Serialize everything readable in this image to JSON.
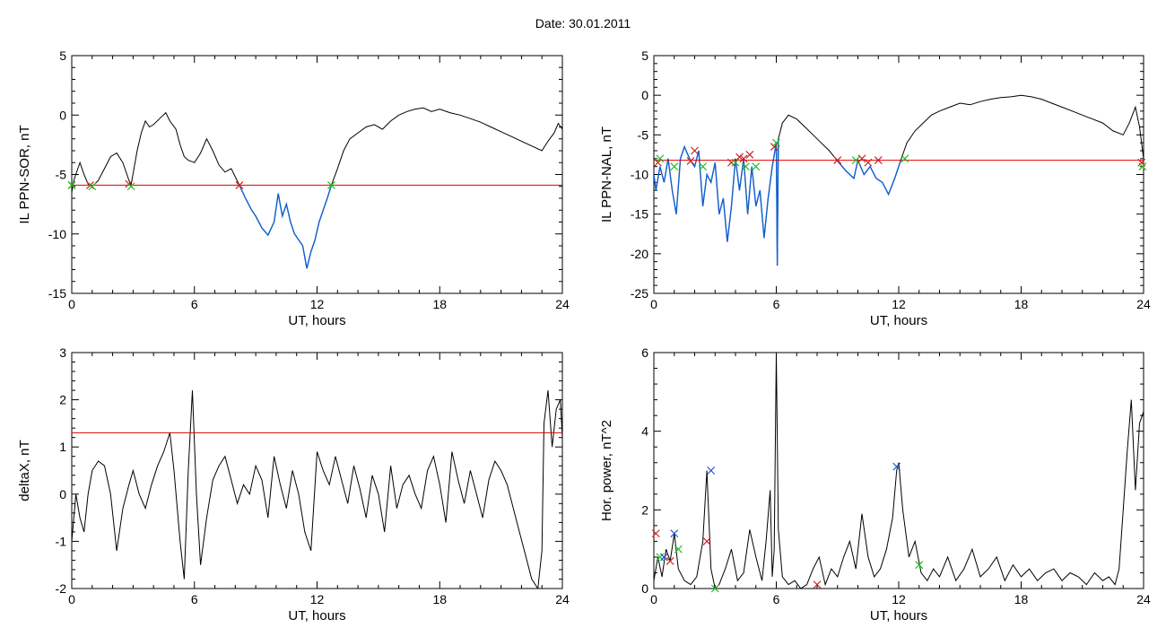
{
  "header": {
    "date_text": "Date:  30.01.2011"
  },
  "colors": {
    "trace": "#000000",
    "highlight": "#1060d0",
    "threshold": "#e00000",
    "marker_red": "#d02020",
    "marker_green": "#20c020",
    "marker_blue": "#2050d0"
  },
  "chart_data": [
    {
      "type": "line",
      "panel": "top-left",
      "title": "",
      "xlabel": "UT, hours",
      "ylabel": "IL PPN-SOR, nT",
      "xlim": [
        0,
        24
      ],
      "ylim": [
        -15,
        5
      ],
      "xticks": [
        0,
        6,
        12,
        18,
        24
      ],
      "yticks": [
        -15,
        -10,
        -5,
        0,
        5
      ],
      "threshold": -5.9,
      "series": [
        {
          "x": [
            0,
            0.1,
            0.3,
            0.4,
            0.6,
            0.8,
            1.0,
            1.3,
            1.6,
            1.9,
            2.2,
            2.5,
            2.8,
            2.9,
            3.2,
            3.4,
            3.6,
            3.8,
            4.0,
            4.3,
            4.6,
            4.8,
            5.1,
            5.3,
            5.5,
            5.7,
            6.0,
            6.3,
            6.6,
            6.9,
            7.2,
            7.5,
            7.8,
            8.0,
            8.2,
            8.5,
            8.8,
            9.0,
            9.3,
            9.6,
            9.9,
            10.1,
            10.3,
            10.5,
            10.7,
            10.9,
            11.1,
            11.3,
            11.5,
            11.7,
            11.9,
            12.1,
            12.3,
            12.5,
            12.7,
            13.0,
            13.3,
            13.6,
            14.0,
            14.4,
            14.8,
            15.2,
            15.6,
            16.0,
            16.4,
            16.8,
            17.2,
            17.6,
            18.0,
            18.5,
            19.0,
            19.5,
            20.0,
            20.5,
            21.0,
            21.5,
            22.0,
            22.5,
            23.0,
            23.3,
            23.6,
            23.8,
            24.0
          ],
          "y": [
            -6.5,
            -5.5,
            -4.5,
            -4.0,
            -5.0,
            -5.8,
            -6.0,
            -5.5,
            -4.5,
            -3.5,
            -3.2,
            -4.0,
            -5.5,
            -5.9,
            -3.0,
            -1.5,
            -0.5,
            -1.0,
            -0.8,
            -0.3,
            0.2,
            -0.5,
            -1.2,
            -2.5,
            -3.5,
            -3.8,
            -4.0,
            -3.2,
            -2.0,
            -3.0,
            -4.2,
            -4.8,
            -4.5,
            -5.2,
            -5.9,
            -7.0,
            -8.0,
            -8.5,
            -9.5,
            -10.1,
            -9.0,
            -6.6,
            -8.5,
            -7.5,
            -9.0,
            -10.0,
            -10.5,
            -11.0,
            -12.9,
            -11.5,
            -10.5,
            -9.0,
            -8.0,
            -7.0,
            -5.9,
            -4.5,
            -3.0,
            -2.0,
            -1.5,
            -1.0,
            -0.8,
            -1.2,
            -0.5,
            0.0,
            0.3,
            0.5,
            0.6,
            0.3,
            0.5,
            0.2,
            0.0,
            -0.3,
            -0.6,
            -1.0,
            -1.4,
            -1.8,
            -2.2,
            -2.6,
            -3.0,
            -2.2,
            -1.5,
            -0.7,
            -1.2
          ]
        }
      ],
      "markers": [
        {
          "x": 0.0,
          "y": -5.9,
          "color": "red"
        },
        {
          "x": 0.0,
          "y": -5.9,
          "color": "green"
        },
        {
          "x": 0.9,
          "y": -5.9,
          "color": "red"
        },
        {
          "x": 1.0,
          "y": -6.0,
          "color": "green"
        },
        {
          "x": 2.8,
          "y": -5.8,
          "color": "red"
        },
        {
          "x": 2.9,
          "y": -6.0,
          "color": "green"
        },
        {
          "x": 8.2,
          "y": -5.9,
          "color": "red"
        },
        {
          "x": 12.7,
          "y": -5.9,
          "color": "green"
        }
      ],
      "highlight_ranges": [
        [
          8.2,
          12.7
        ]
      ]
    },
    {
      "type": "line",
      "panel": "top-right",
      "title": "",
      "xlabel": "UT, hours",
      "ylabel": "IL PPN-NAL, nT",
      "xlim": [
        0,
        24
      ],
      "ylim": [
        -25,
        5
      ],
      "xticks": [
        0,
        6,
        12,
        18,
        24
      ],
      "yticks": [
        -25,
        -20,
        -15,
        -10,
        -5,
        0,
        5
      ],
      "threshold": -8.2,
      "series": [
        {
          "x": [
            0,
            0.1,
            0.3,
            0.5,
            0.7,
            0.9,
            1.1,
            1.3,
            1.5,
            1.8,
            2.0,
            2.2,
            2.4,
            2.6,
            2.8,
            3.0,
            3.2,
            3.4,
            3.6,
            3.8,
            4.0,
            4.2,
            4.4,
            4.6,
            4.8,
            5.0,
            5.2,
            5.4,
            5.6,
            5.8,
            6.0,
            6.05,
            6.1,
            6.3,
            6.6,
            7.0,
            7.4,
            7.8,
            8.2,
            8.6,
            9.0,
            9.4,
            9.8,
            10.0,
            10.3,
            10.6,
            10.9,
            11.2,
            11.5,
            11.8,
            12.1,
            12.4,
            12.8,
            13.2,
            13.6,
            14.0,
            14.5,
            15.0,
            15.5,
            16.0,
            16.5,
            17.0,
            17.5,
            18.0,
            18.5,
            19.0,
            19.5,
            20.0,
            20.5,
            21.0,
            21.5,
            22.0,
            22.5,
            23.0,
            23.3,
            23.6,
            23.8,
            24.0
          ],
          "y": [
            -10.0,
            -12.0,
            -9.0,
            -11.0,
            -8.0,
            -12.0,
            -15.0,
            -8.0,
            -6.5,
            -8.3,
            -9.0,
            -7.0,
            -14.0,
            -10.0,
            -11.0,
            -8.5,
            -15.0,
            -13.0,
            -18.5,
            -14.0,
            -8.0,
            -12.0,
            -8.0,
            -15.0,
            -9.0,
            -14.0,
            -12.0,
            -18.0,
            -13.0,
            -9.0,
            -6.0,
            -21.5,
            -5.5,
            -3.5,
            -2.5,
            -3.0,
            -4.0,
            -5.0,
            -6.0,
            -7.0,
            -8.3,
            -9.5,
            -10.5,
            -8.2,
            -10.0,
            -9.0,
            -10.5,
            -11.0,
            -12.5,
            -10.5,
            -8.2,
            -6.0,
            -4.5,
            -3.5,
            -2.5,
            -2.0,
            -1.5,
            -1.0,
            -1.2,
            -0.8,
            -0.5,
            -0.3,
            -0.2,
            0.0,
            -0.2,
            -0.5,
            -1.0,
            -1.5,
            -2.0,
            -2.5,
            -3.0,
            -3.5,
            -4.5,
            -5.0,
            -3.5,
            -1.5,
            -4.0,
            -8.0
          ]
        }
      ],
      "markers": [
        {
          "x": 0.2,
          "y": -8.5,
          "color": "red"
        },
        {
          "x": 0.3,
          "y": -8.0,
          "color": "green"
        },
        {
          "x": 1.0,
          "y": -9.0,
          "color": "green"
        },
        {
          "x": 1.8,
          "y": -8.3,
          "color": "red"
        },
        {
          "x": 2.0,
          "y": -7.0,
          "color": "red"
        },
        {
          "x": 2.4,
          "y": -9.0,
          "color": "green"
        },
        {
          "x": 3.8,
          "y": -8.5,
          "color": "red"
        },
        {
          "x": 4.0,
          "y": -8.5,
          "color": "green"
        },
        {
          "x": 4.2,
          "y": -7.8,
          "color": "red"
        },
        {
          "x": 4.4,
          "y": -8.0,
          "color": "red"
        },
        {
          "x": 4.5,
          "y": -9.0,
          "color": "green"
        },
        {
          "x": 4.7,
          "y": -7.5,
          "color": "red"
        },
        {
          "x": 5.0,
          "y": -9.0,
          "color": "green"
        },
        {
          "x": 5.9,
          "y": -6.5,
          "color": "red"
        },
        {
          "x": 6.0,
          "y": -6.0,
          "color": "green"
        },
        {
          "x": 9.0,
          "y": -8.2,
          "color": "red"
        },
        {
          "x": 9.9,
          "y": -8.2,
          "color": "green"
        },
        {
          "x": 10.2,
          "y": -8.0,
          "color": "red"
        },
        {
          "x": 10.5,
          "y": -8.5,
          "color": "red"
        },
        {
          "x": 11.0,
          "y": -8.2,
          "color": "red"
        },
        {
          "x": 12.3,
          "y": -8.0,
          "color": "green"
        },
        {
          "x": 23.9,
          "y": -8.5,
          "color": "red"
        },
        {
          "x": 23.95,
          "y": -9.0,
          "color": "green"
        }
      ],
      "highlight_ranges": [
        [
          0.0,
          6.1
        ],
        [
          9.0,
          12.3
        ]
      ]
    },
    {
      "type": "line",
      "panel": "bottom-left",
      "title": "",
      "xlabel": "UT, hours",
      "ylabel": "deltaX, nT",
      "xlim": [
        0,
        24
      ],
      "ylim": [
        -2,
        3
      ],
      "xticks": [
        0,
        6,
        12,
        18,
        24
      ],
      "yticks": [
        -2,
        -1,
        0,
        1,
        2,
        3
      ],
      "threshold": 1.3,
      "series": [
        {
          "x": [
            0,
            0.2,
            0.4,
            0.6,
            0.8,
            1.0,
            1.3,
            1.6,
            1.9,
            2.2,
            2.5,
            2.8,
            3.0,
            3.3,
            3.6,
            3.9,
            4.2,
            4.5,
            4.8,
            5.0,
            5.3,
            5.5,
            5.7,
            5.9,
            6.1,
            6.3,
            6.6,
            6.9,
            7.2,
            7.5,
            7.8,
            8.1,
            8.4,
            8.7,
            9.0,
            9.3,
            9.6,
            9.9,
            10.2,
            10.5,
            10.8,
            11.1,
            11.4,
            11.7,
            12.0,
            12.3,
            12.6,
            12.9,
            13.2,
            13.5,
            13.8,
            14.1,
            14.4,
            14.7,
            15.0,
            15.3,
            15.6,
            15.9,
            16.2,
            16.5,
            16.8,
            17.1,
            17.4,
            17.7,
            18.0,
            18.3,
            18.6,
            18.9,
            19.2,
            19.5,
            19.8,
            20.1,
            20.4,
            20.7,
            21.0,
            21.3,
            21.6,
            21.9,
            22.2,
            22.5,
            22.8,
            23.0,
            23.1,
            23.3,
            23.5,
            23.7,
            23.9,
            24.0
          ],
          "y": [
            -1.0,
            0.0,
            -0.5,
            -0.8,
            0.0,
            0.5,
            0.7,
            0.6,
            0.0,
            -1.2,
            -0.3,
            0.2,
            0.5,
            0.0,
            -0.3,
            0.2,
            0.6,
            0.9,
            1.3,
            0.5,
            -1.0,
            -1.8,
            0.5,
            2.2,
            0.0,
            -1.5,
            -0.5,
            0.3,
            0.6,
            0.8,
            0.3,
            -0.2,
            0.2,
            0.0,
            0.6,
            0.3,
            -0.5,
            0.8,
            0.2,
            -0.3,
            0.5,
            0.0,
            -0.8,
            -1.2,
            0.9,
            0.5,
            0.2,
            0.8,
            0.3,
            -0.2,
            0.6,
            0.1,
            -0.5,
            0.4,
            0.0,
            -0.8,
            0.6,
            -0.3,
            0.2,
            0.4,
            0.0,
            -0.3,
            0.5,
            0.8,
            0.2,
            -0.6,
            0.9,
            0.3,
            -0.2,
            0.5,
            0.0,
            -0.5,
            0.3,
            0.7,
            0.5,
            0.2,
            -0.3,
            -0.8,
            -1.3,
            -1.8,
            -2.0,
            -1.2,
            1.5,
            2.2,
            1.0,
            1.8,
            2.0,
            1.2
          ]
        }
      ],
      "markers": [],
      "highlight_ranges": []
    },
    {
      "type": "line",
      "panel": "bottom-right",
      "title": "",
      "xlabel": "UT, hours",
      "ylabel": "Hor. power, nT^2",
      "xlim": [
        0,
        24
      ],
      "ylim": [
        0,
        6
      ],
      "xticks": [
        0,
        6,
        12,
        18,
        24
      ],
      "yticks": [
        0,
        2,
        4,
        6
      ],
      "threshold": null,
      "series": [
        {
          "x": [
            0,
            0.2,
            0.4,
            0.6,
            0.8,
            1.0,
            1.2,
            1.5,
            1.8,
            2.1,
            2.4,
            2.6,
            2.8,
            3.0,
            3.2,
            3.5,
            3.8,
            4.1,
            4.4,
            4.7,
            5.0,
            5.3,
            5.5,
            5.7,
            5.8,
            5.9,
            6.0,
            6.1,
            6.3,
            6.6,
            6.9,
            7.2,
            7.5,
            7.8,
            8.1,
            8.4,
            8.7,
            9.0,
            9.3,
            9.6,
            9.9,
            10.2,
            10.5,
            10.8,
            11.1,
            11.4,
            11.7,
            11.9,
            12.0,
            12.2,
            12.5,
            12.8,
            13.1,
            13.4,
            13.7,
            14.0,
            14.4,
            14.8,
            15.2,
            15.6,
            16.0,
            16.4,
            16.8,
            17.2,
            17.6,
            18.0,
            18.4,
            18.8,
            19.2,
            19.6,
            20.0,
            20.4,
            20.8,
            21.2,
            21.6,
            22.0,
            22.3,
            22.6,
            22.8,
            23.0,
            23.2,
            23.4,
            23.6,
            23.8,
            24.0
          ],
          "y": [
            0.2,
            0.8,
            0.3,
            1.0,
            0.7,
            1.4,
            0.5,
            0.2,
            0.1,
            0.3,
            1.2,
            3.0,
            0.5,
            0.0,
            0.1,
            0.5,
            1.0,
            0.2,
            0.4,
            1.5,
            0.8,
            0.2,
            1.2,
            2.5,
            0.3,
            1.0,
            6.0,
            1.5,
            0.3,
            0.1,
            0.2,
            0.0,
            0.1,
            0.5,
            0.8,
            0.1,
            0.5,
            0.3,
            0.8,
            1.2,
            0.5,
            1.9,
            0.8,
            0.3,
            0.5,
            1.0,
            1.8,
            3.0,
            3.2,
            2.0,
            0.8,
            1.2,
            0.4,
            0.2,
            0.5,
            0.3,
            0.8,
            0.2,
            0.5,
            1.0,
            0.3,
            0.5,
            0.8,
            0.2,
            0.6,
            0.3,
            0.5,
            0.2,
            0.4,
            0.5,
            0.2,
            0.4,
            0.3,
            0.1,
            0.4,
            0.2,
            0.3,
            0.1,
            0.5,
            2.0,
            3.5,
            4.8,
            2.5,
            4.2,
            4.5
          ]
        }
      ],
      "markers": [
        {
          "x": 0.1,
          "y": 1.4,
          "color": "red"
        },
        {
          "x": 0.3,
          "y": 0.8,
          "color": "green"
        },
        {
          "x": 0.5,
          "y": 0.8,
          "color": "blue"
        },
        {
          "x": 0.8,
          "y": 0.7,
          "color": "red"
        },
        {
          "x": 1.0,
          "y": 1.4,
          "color": "blue"
        },
        {
          "x": 1.2,
          "y": 1.0,
          "color": "green"
        },
        {
          "x": 2.6,
          "y": 1.2,
          "color": "red"
        },
        {
          "x": 2.8,
          "y": 3.0,
          "color": "blue"
        },
        {
          "x": 3.0,
          "y": 0.0,
          "color": "green"
        },
        {
          "x": 8.0,
          "y": 0.1,
          "color": "red"
        },
        {
          "x": 11.9,
          "y": 3.1,
          "color": "blue"
        },
        {
          "x": 13.0,
          "y": 0.6,
          "color": "green"
        }
      ],
      "highlight_ranges": []
    }
  ]
}
